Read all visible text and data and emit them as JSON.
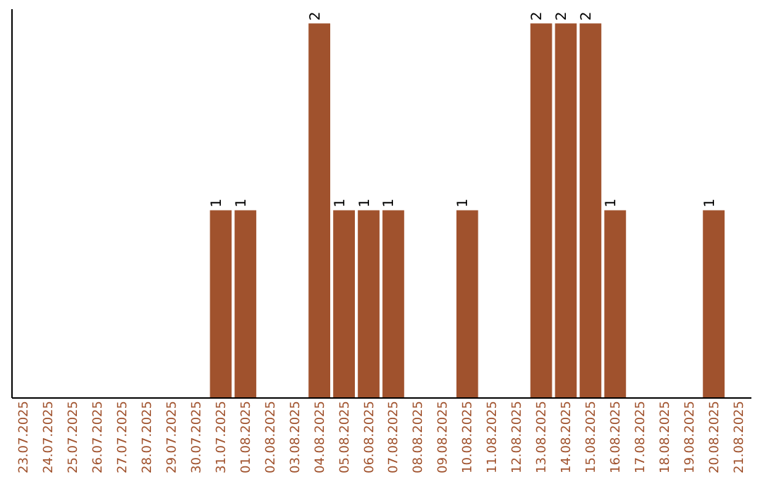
{
  "chart_data": {
    "type": "bar",
    "categories": [
      "23.07.2025",
      "24.07.2025",
      "25.07.2025",
      "26.07.2025",
      "27.07.2025",
      "28.07.2025",
      "29.07.2025",
      "30.07.2025",
      "31.07.2025",
      "01.08.2025",
      "02.08.2025",
      "03.08.2025",
      "04.08.2025",
      "05.08.2025",
      "06.08.2025",
      "07.08.2025",
      "08.08.2025",
      "09.08.2025",
      "10.08.2025",
      "11.08.2025",
      "12.08.2025",
      "13.08.2025",
      "14.08.2025",
      "15.08.2025",
      "16.08.2025",
      "17.08.2025",
      "18.08.2025",
      "19.08.2025",
      "20.08.2025",
      "21.08.2025"
    ],
    "values": [
      0,
      0,
      0,
      0,
      0,
      0,
      0,
      0,
      1,
      1,
      0,
      0,
      2,
      1,
      1,
      1,
      0,
      0,
      1,
      0,
      0,
      2,
      2,
      2,
      1,
      0,
      0,
      0,
      1,
      0
    ],
    "value_labels": [
      null,
      null,
      null,
      null,
      null,
      null,
      null,
      null,
      "1",
      "1",
      null,
      null,
      "2",
      "1",
      "1",
      "1",
      null,
      null,
      "1",
      null,
      null,
      "2",
      "2",
      "2",
      "1",
      null,
      null,
      null,
      "1",
      null
    ],
    "color": "#a0522d",
    "ylim": [
      0,
      2.08
    ],
    "tick_labels": "x",
    "grid": false
  }
}
